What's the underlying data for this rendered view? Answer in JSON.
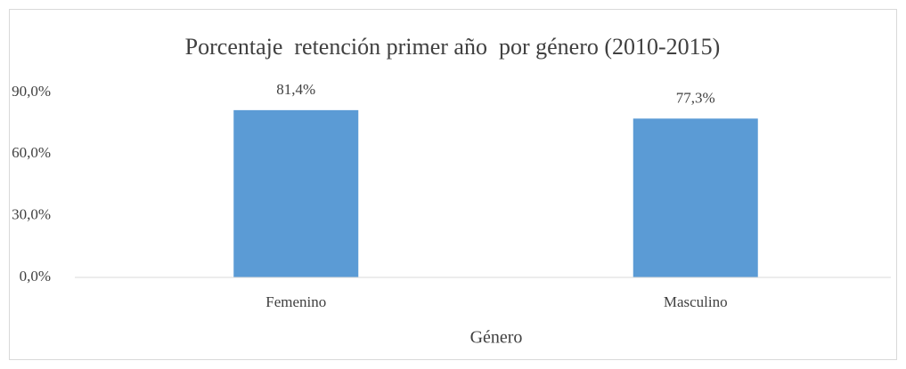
{
  "chart_data": {
    "type": "bar",
    "title": "Porcentaje  retención primer año  por género (2010-2015)",
    "x_label": "Género",
    "categories": [
      "Femenino",
      "Masculino"
    ],
    "values": [
      81.4,
      77.3
    ],
    "value_labels": [
      "81,4%",
      "77,3%"
    ],
    "color": "#5b9bd5",
    "ylim": [
      0,
      90
    ],
    "yticks": [
      {
        "value": 0,
        "label": "0,0%"
      },
      {
        "value": 30,
        "label": "30,0%"
      },
      {
        "value": 60,
        "label": "60,0%"
      },
      {
        "value": 90,
        "label": "90,0%"
      }
    ],
    "grid": false
  }
}
